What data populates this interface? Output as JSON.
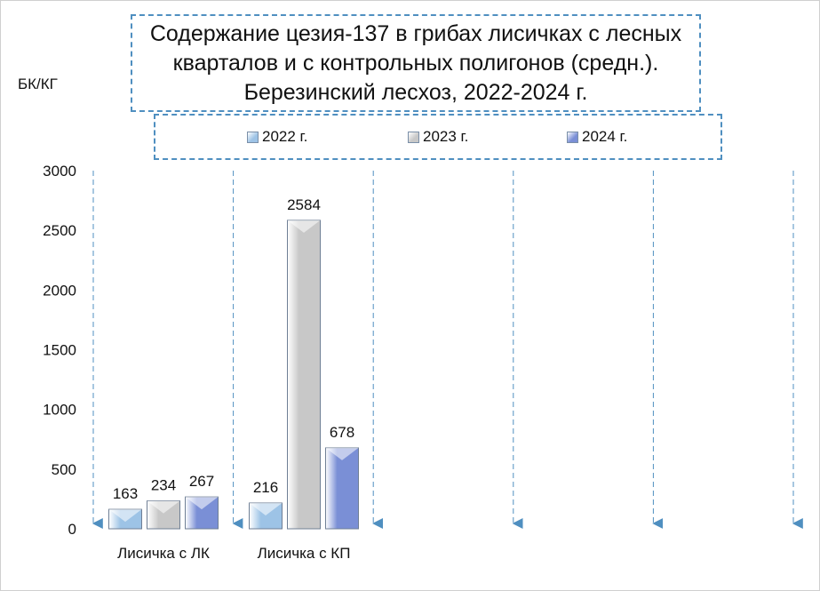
{
  "chart_data": {
    "type": "bar",
    "title": "Содержание цезия-137 в грибах лисичках с лесных кварталов и с контрольных полигонов (средн.). Березинский лесхоз, 2022-2024 г.",
    "title_lines": [
      "Содержание цезия-137 в грибах лисичках с лесных",
      "кварталов и с контрольных полигонов (средн.).",
      "Березинский лесхоз, 2022-2024 г."
    ],
    "ylabel": "БК/КГ",
    "xlabel": "",
    "categories": [
      "Лисичка с ЛК",
      "Лисичка с КП"
    ],
    "series": [
      {
        "name": "2022 г.",
        "values": [
          163,
          216
        ],
        "color": "#9dc3e6"
      },
      {
        "name": "2023 г.",
        "values": [
          234,
          2584
        ],
        "color": "#c8c8c8"
      },
      {
        "name": "2024 г.",
        "values": [
          267,
          678
        ],
        "color": "#7a8fd6"
      }
    ],
    "ylim": [
      0,
      3000
    ],
    "yticks": [
      0,
      500,
      1000,
      1500,
      2000,
      2500,
      3000
    ],
    "legend_position": "top",
    "grid": "vertical dashed",
    "data_labels": true
  }
}
